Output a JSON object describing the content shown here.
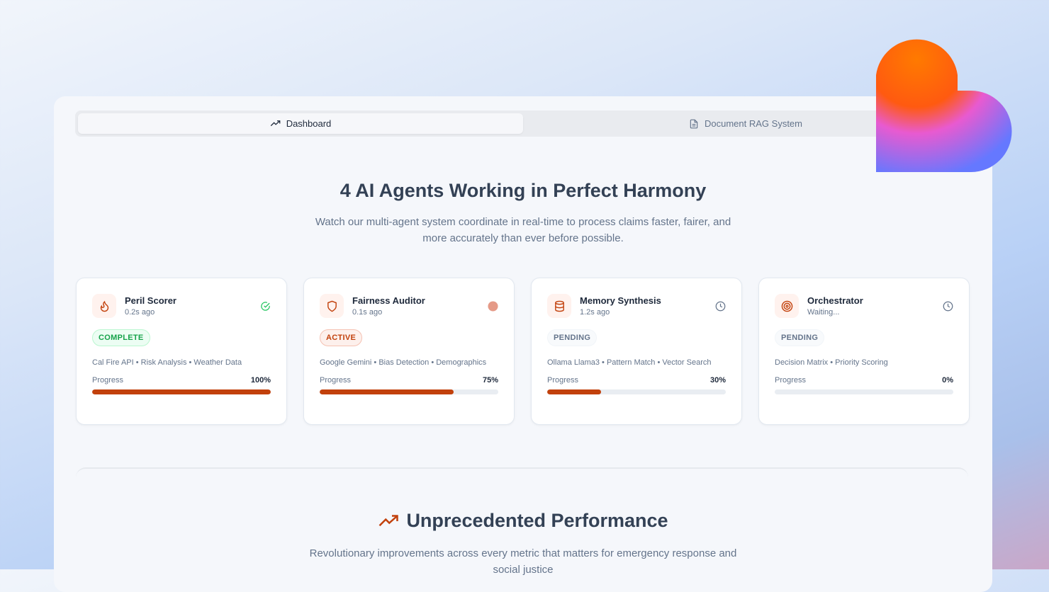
{
  "tabs": [
    {
      "label": "Dashboard",
      "icon": "trending-up-icon",
      "active": true
    },
    {
      "label": "Document RAG System",
      "icon": "file-text-icon",
      "active": false
    }
  ],
  "hero": {
    "title": "4 AI Agents Working in Perfect Harmony",
    "subtitle": "Watch our multi-agent system coordinate in real-time to process claims faster, fairer, and more accurately than ever before possible."
  },
  "agents": [
    {
      "name": "Peril Scorer",
      "time": "0.2s ago",
      "status": "COMPLETE",
      "tags": "Cal Fire API • Risk Analysis • Weather Data",
      "progress_label": "Progress",
      "progress": "100%",
      "progress_value": 100,
      "icon": "flame-icon",
      "status_icon": "check-circle-icon"
    },
    {
      "name": "Fairness Auditor",
      "time": "0.1s ago",
      "status": "ACTIVE",
      "tags": "Google Gemini • Bias Detection • Demographics",
      "progress_label": "Progress",
      "progress": "75%",
      "progress_value": 75,
      "icon": "shield-icon",
      "status_icon": "active-dot-icon"
    },
    {
      "name": "Memory Synthesis",
      "time": "1.2s ago",
      "status": "PENDING",
      "tags": "Ollama Llama3 • Pattern Match • Vector Search",
      "progress_label": "Progress",
      "progress": "30%",
      "progress_value": 30,
      "icon": "database-icon",
      "status_icon": "clock-icon"
    },
    {
      "name": "Orchestrator",
      "time": "Waiting...",
      "status": "PENDING",
      "tags": "Decision Matrix • Priority Scoring",
      "progress_label": "Progress",
      "progress": "0%",
      "progress_value": 0,
      "icon": "target-icon",
      "status_icon": "clock-icon"
    }
  ],
  "performance": {
    "title": "Unprecedented Performance",
    "subtitle": "Revolutionary improvements across every metric that matters for emergency response and social justice"
  },
  "colors": {
    "accent": "#c2410c",
    "complete": "#16a34a",
    "text": "#334155"
  }
}
